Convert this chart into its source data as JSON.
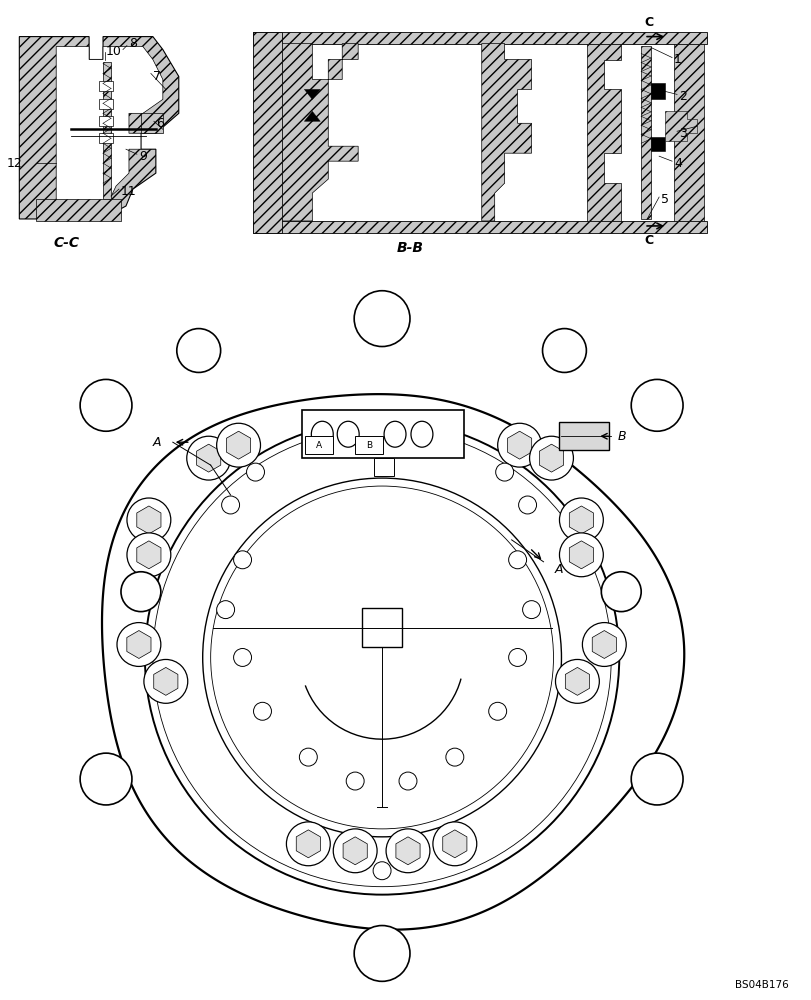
{
  "bg_color": "#ffffff",
  "lc": "#000000",
  "fig_w": 8.12,
  "fig_h": 10.0,
  "dpi": 100,
  "watermark": "BS04B176",
  "title_cc": "C-C",
  "title_bb": "B-B"
}
